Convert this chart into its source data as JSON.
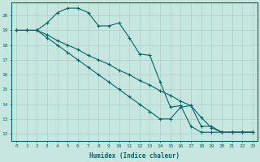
{
  "background_color": "#c8e6e0",
  "grid_color": "#a8cfc8",
  "line_color": "#006666",
  "xlabel": "Humidex (Indice chaleur)",
  "xlim": [
    -0.5,
    23.5
  ],
  "ylim": [
    11.5,
    20.9
  ],
  "yticks": [
    12,
    13,
    14,
    15,
    16,
    17,
    18,
    19,
    20
  ],
  "xticks": [
    0,
    1,
    2,
    3,
    4,
    5,
    6,
    7,
    8,
    9,
    10,
    11,
    12,
    13,
    14,
    15,
    16,
    17,
    18,
    19,
    20,
    21,
    22,
    23
  ],
  "series1_x": [
    0,
    1,
    2,
    3,
    4,
    5,
    6,
    7,
    8,
    9,
    10,
    11,
    12,
    13,
    14,
    15,
    16,
    17,
    18,
    19,
    20,
    21,
    22,
    23
  ],
  "series1_y": [
    19.0,
    19.0,
    19.0,
    19.5,
    20.2,
    20.5,
    20.5,
    20.2,
    19.3,
    19.3,
    19.5,
    18.5,
    17.4,
    17.3,
    15.5,
    13.8,
    13.9,
    12.5,
    12.1,
    12.1,
    12.1,
    12.1,
    12.1,
    12.1
  ],
  "series2_x": [
    0,
    1,
    2,
    3,
    4,
    5,
    6,
    7,
    8,
    9,
    10,
    11,
    12,
    13,
    14,
    15,
    16,
    17,
    18,
    19,
    20,
    21,
    22,
    23
  ],
  "series2_y": [
    19.0,
    19.0,
    19.0,
    18.7,
    18.3,
    18.0,
    17.7,
    17.3,
    17.0,
    16.7,
    16.3,
    16.0,
    15.6,
    15.3,
    14.9,
    14.6,
    14.2,
    13.9,
    13.1,
    12.4,
    12.1,
    12.1,
    12.1,
    12.1
  ],
  "series3_x": [
    0,
    1,
    2,
    3,
    4,
    5,
    6,
    7,
    8,
    9,
    10,
    11,
    12,
    13,
    14,
    15,
    16,
    17,
    18,
    19,
    20,
    21,
    22,
    23
  ],
  "series3_y": [
    19.0,
    19.0,
    19.0,
    18.5,
    18.0,
    17.5,
    17.0,
    16.5,
    16.0,
    15.5,
    15.0,
    14.5,
    14.0,
    13.5,
    13.0,
    13.0,
    13.8,
    13.9,
    12.5,
    12.5,
    12.1,
    12.1,
    12.1,
    12.1
  ]
}
